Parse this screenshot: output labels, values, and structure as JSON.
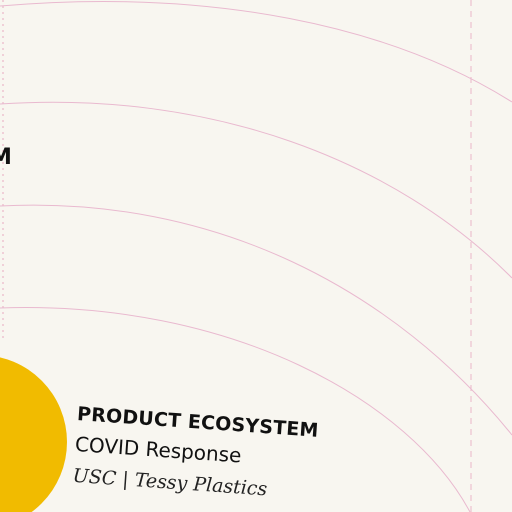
{
  "edge_text": "M",
  "caption": {
    "title": "PRODUCT ECOSYSTEM",
    "subtitle": "COVID Response",
    "credit": "USC | Tessy Plastics"
  },
  "colors": {
    "background": "#f8f6f0",
    "arc": "#e9b9cf",
    "guide": "#eab7c8",
    "circle": "#f1bb00",
    "text": "#111111"
  }
}
